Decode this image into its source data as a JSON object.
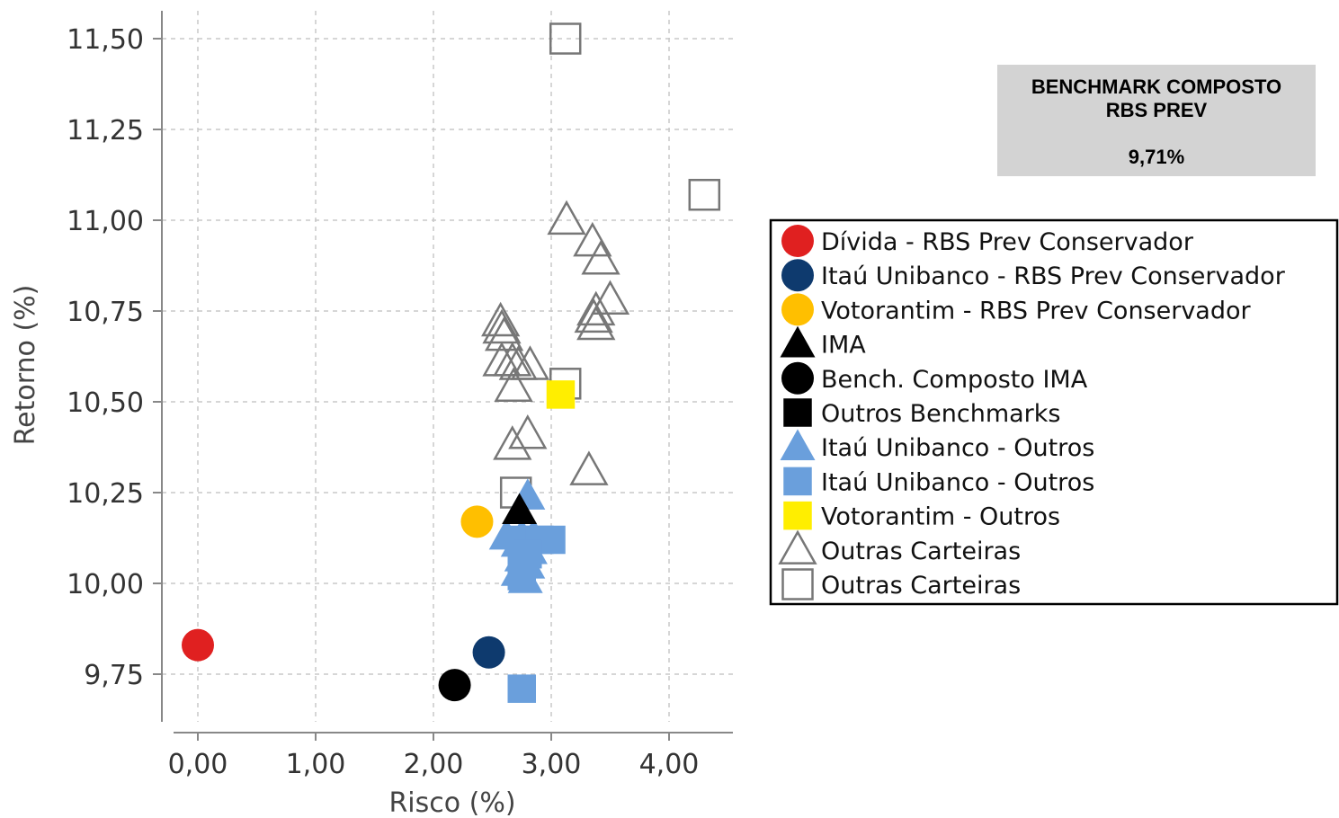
{
  "info_box": {
    "title": "BENCHMARK COMPOSTO\nRBS PREV",
    "value": "9,71%",
    "background": "#d3d3d3"
  },
  "chart_data": {
    "type": "scatter",
    "xlabel": "Risco (%)",
    "ylabel": "Retorno (%)",
    "xlim": [
      -0.2,
      4.45
    ],
    "ylim": [
      9.59,
      11.65
    ],
    "xticks": [
      0,
      1,
      2,
      3,
      4
    ],
    "xtick_labels": [
      "0,00",
      "1,00",
      "2,00",
      "3,00",
      "4,00"
    ],
    "yticks": [
      9.75,
      10.0,
      10.25,
      10.5,
      10.75,
      11.0,
      11.25,
      11.5
    ],
    "ytick_labels": [
      "9,75",
      "10,00",
      "10,25",
      "10,50",
      "10,75",
      "11,00",
      "11,25",
      "11,50"
    ],
    "grid": true,
    "legend_position": "right",
    "series": [
      {
        "name": "Outras Carteiras",
        "marker": "triangle-open",
        "color": "#777777",
        "points": [
          [
            3.13,
            11.0
          ],
          [
            3.35,
            10.94
          ],
          [
            3.42,
            10.89
          ],
          [
            3.5,
            10.78
          ],
          [
            3.38,
            10.75
          ],
          [
            3.36,
            10.73
          ],
          [
            3.38,
            10.71
          ],
          [
            2.57,
            10.72
          ],
          [
            2.58,
            10.7
          ],
          [
            2.6,
            10.68
          ],
          [
            2.58,
            10.61
          ],
          [
            2.67,
            10.61
          ],
          [
            2.72,
            10.6
          ],
          [
            2.82,
            10.6
          ],
          [
            2.68,
            10.54
          ],
          [
            2.8,
            10.41
          ],
          [
            2.67,
            10.38
          ],
          [
            3.32,
            10.31
          ]
        ]
      },
      {
        "name": "Outras Carteiras",
        "marker": "square-open",
        "color": "#777777",
        "points": [
          [
            3.12,
            11.5
          ],
          [
            4.3,
            11.07
          ],
          [
            3.12,
            10.55
          ],
          [
            2.7,
            10.25
          ]
        ]
      },
      {
        "name": "Itaú Unibanco - Outros",
        "marker": "triangle-filled",
        "color": "#6a9fdc",
        "points": [
          [
            2.8,
            10.24
          ],
          [
            2.62,
            10.13
          ],
          [
            2.75,
            10.13
          ],
          [
            2.85,
            10.13
          ],
          [
            2.72,
            10.11
          ],
          [
            2.82,
            10.09
          ],
          [
            2.75,
            10.07
          ],
          [
            2.8,
            10.05
          ],
          [
            2.72,
            10.03
          ],
          [
            2.78,
            10.01
          ]
        ]
      },
      {
        "name": "Itaú Unibanco - Outros",
        "marker": "square-filled",
        "color": "#6a9fdc",
        "points": [
          [
            2.75,
            10.12
          ],
          [
            2.9,
            10.12
          ],
          [
            3.0,
            10.12
          ],
          [
            2.8,
            10.08
          ],
          [
            2.75,
            10.05
          ],
          [
            2.75,
            10.02
          ],
          [
            2.75,
            9.71
          ]
        ]
      },
      {
        "name": "Votorantim - Outros",
        "marker": "square-filled",
        "color": "#ffee00",
        "points": [
          [
            3.08,
            10.52
          ]
        ]
      },
      {
        "name": "IMA",
        "marker": "triangle-filled",
        "color": "#000000",
        "points": [
          [
            2.73,
            10.2
          ]
        ]
      },
      {
        "name": "Bench. Composto IMA",
        "marker": "circle-filled",
        "color": "#000000",
        "points": [
          [
            2.18,
            9.72
          ]
        ]
      },
      {
        "name": "Votorantim - RBS Prev Conservador",
        "marker": "circle-filled",
        "color": "#ffbf00",
        "points": [
          [
            2.37,
            10.17
          ]
        ]
      },
      {
        "name": "Itaú Unibanco - RBS Prev Conservador",
        "marker": "circle-filled",
        "color": "#0e3a6e",
        "points": [
          [
            2.47,
            9.81
          ]
        ]
      },
      {
        "name": "Dívida - RBS Prev Conservador",
        "marker": "circle-filled",
        "color": "#e02020",
        "points": [
          [
            0.0,
            9.83
          ]
        ]
      }
    ],
    "legend": [
      {
        "label": "Dívida - RBS Prev Conservador",
        "marker": "circle-filled",
        "color": "#e02020"
      },
      {
        "label": "Itaú Unibanco - RBS Prev Conservador",
        "marker": "circle-filled",
        "color": "#0e3a6e"
      },
      {
        "label": "Votorantim - RBS Prev Conservador",
        "marker": "circle-filled",
        "color": "#ffbf00"
      },
      {
        "label": "IMA",
        "marker": "triangle-filled",
        "color": "#000000"
      },
      {
        "label": "Bench. Composto IMA",
        "marker": "circle-filled",
        "color": "#000000"
      },
      {
        "label": "Outros Benchmarks",
        "marker": "square-filled",
        "color": "#000000"
      },
      {
        "label": "Itaú Unibanco - Outros",
        "marker": "triangle-filled",
        "color": "#6a9fdc"
      },
      {
        "label": "Itaú Unibanco - Outros",
        "marker": "square-filled",
        "color": "#6a9fdc"
      },
      {
        "label": "Votorantim - Outros",
        "marker": "square-filled",
        "color": "#ffee00"
      },
      {
        "label": "Outras Carteiras",
        "marker": "triangle-open",
        "color": "#777777"
      },
      {
        "label": "Outras Carteiras",
        "marker": "square-open",
        "color": "#777777"
      }
    ]
  }
}
